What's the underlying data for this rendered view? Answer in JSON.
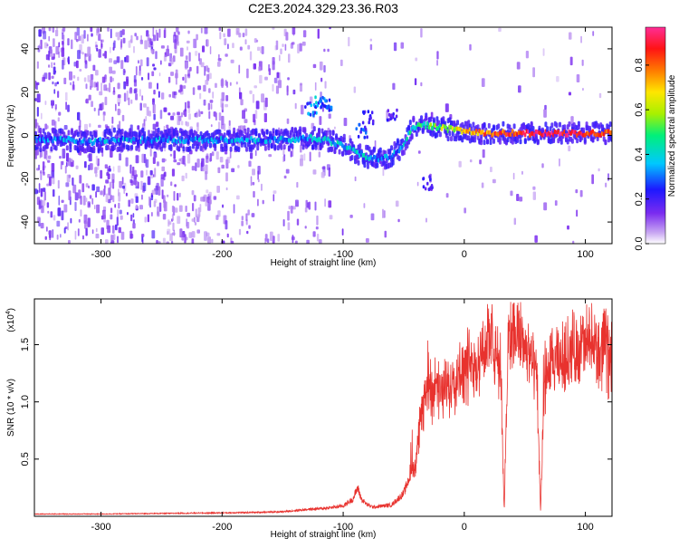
{
  "figure": {
    "title": "C2E3.2024.329.23.36.R03"
  },
  "colors": {
    "snr_line": "#e8322e",
    "colorbar": [
      "#ffffff",
      "#c9a8f2",
      "#7b2cf0",
      "#1d18ff",
      "#00c8ff",
      "#00f07a",
      "#a8f000",
      "#ffe600",
      "#ff7a00",
      "#ff1414",
      "#ff2d96"
    ]
  },
  "chart_data": [
    {
      "type": "heatmap",
      "title": "C2E3.2024.329.23.36.R03",
      "xlabel": "Height of straight line (km)",
      "ylabel": "Frequency (Hz)",
      "xlim": [
        -355,
        122
      ],
      "ylim": [
        -50,
        50
      ],
      "xticks": [
        -300,
        -200,
        -100,
        0,
        100
      ],
      "yticks": [
        -40,
        -20,
        0,
        20,
        40
      ],
      "xtick_labels": [
        "-300",
        "-200",
        "-100",
        "0",
        "100"
      ],
      "ytick_labels": [
        "-40",
        "-20",
        "0",
        "20",
        "40"
      ],
      "colorbar": {
        "label": "Normalized spectral amplitude",
        "range": [
          0,
          0.97
        ],
        "ticks": [
          "0.0",
          "0.2",
          "0.4",
          "0.6",
          "0.8"
        ],
        "tick_values": [
          0.0,
          0.2,
          0.4,
          0.6,
          0.8
        ]
      },
      "main_band": [
        [
          -350,
          -2,
          0.3
        ],
        [
          -330,
          -2,
          0.32
        ],
        [
          -310,
          -3,
          0.3
        ],
        [
          -290,
          -2,
          0.33
        ],
        [
          -270,
          -2,
          0.31
        ],
        [
          -250,
          -2,
          0.32
        ],
        [
          -230,
          -2,
          0.3
        ],
        [
          -210,
          -2,
          0.31
        ],
        [
          -190,
          -2,
          0.33
        ],
        [
          -170,
          -2,
          0.32
        ],
        [
          -150,
          -2,
          0.34
        ],
        [
          -130,
          -1,
          0.35
        ],
        [
          -115,
          -2,
          0.38
        ],
        [
          -100,
          -5,
          0.4
        ],
        [
          -90,
          -8,
          0.38
        ],
        [
          -80,
          -10,
          0.36
        ],
        [
          -70,
          -11,
          0.33
        ],
        [
          -60,
          -9,
          0.3
        ],
        [
          -50,
          -4,
          0.38
        ],
        [
          -45,
          3,
          0.45
        ],
        [
          -35,
          5,
          0.48
        ],
        [
          -25,
          4,
          0.55
        ],
        [
          -15,
          3,
          0.6
        ],
        [
          0,
          2,
          0.7
        ],
        [
          15,
          1,
          0.8
        ],
        [
          30,
          1,
          0.85
        ],
        [
          45,
          1,
          0.9
        ],
        [
          60,
          1,
          0.92
        ],
        [
          75,
          1,
          0.95
        ],
        [
          90,
          1,
          0.92
        ],
        [
          105,
          1,
          0.88
        ],
        [
          120,
          1,
          0.8
        ]
      ],
      "secondary_features": [
        [
          -128,
          12,
          0.35
        ],
        [
          -120,
          16,
          0.38
        ],
        [
          -115,
          14,
          0.32
        ],
        [
          -80,
          8,
          0.25
        ],
        [
          -60,
          9,
          0.22
        ],
        [
          -85,
          2,
          0.3
        ],
        [
          -30,
          -22,
          0.22
        ]
      ]
    },
    {
      "type": "line",
      "xlabel": "Height of straight line (km)",
      "ylabel": "SNR (10 * v/v)",
      "y_multiplier_label": "(x10",
      "y_multiplier_exponent": "4",
      "xlim": [
        -355,
        122
      ],
      "ylim": [
        0,
        1.9
      ],
      "xticks": [
        -300,
        -200,
        -100,
        0,
        100
      ],
      "yticks": [
        0.5,
        1.0,
        1.5
      ],
      "xtick_labels": [
        "-300",
        "-200",
        "-100",
        "0",
        "100"
      ],
      "ytick_labels": [
        "0.5",
        "1.0",
        "1.5"
      ],
      "series": [
        {
          "x": [
            -355,
            -300,
            -250,
            -200,
            -170,
            -150,
            -130,
            -115,
            -100,
            -92,
            -88,
            -85,
            -80,
            -75,
            -60,
            -50,
            -40,
            -35,
            -30,
            -20,
            -10,
            0,
            10,
            20,
            30,
            33,
            36,
            40,
            50,
            55,
            60,
            63,
            66,
            70,
            80,
            90,
            100,
            110,
            122
          ],
          "y": [
            0.02,
            0.02,
            0.025,
            0.03,
            0.035,
            0.04,
            0.06,
            0.07,
            0.09,
            0.15,
            0.25,
            0.15,
            0.1,
            0.08,
            0.1,
            0.2,
            0.5,
            0.9,
            1.2,
            1.05,
            1.2,
            1.3,
            1.35,
            1.55,
            1.3,
            0.05,
            1.5,
            1.65,
            1.5,
            1.35,
            1.2,
            0.05,
            1.1,
            1.3,
            1.35,
            1.45,
            1.5,
            1.45,
            1.4
          ]
        }
      ]
    }
  ]
}
